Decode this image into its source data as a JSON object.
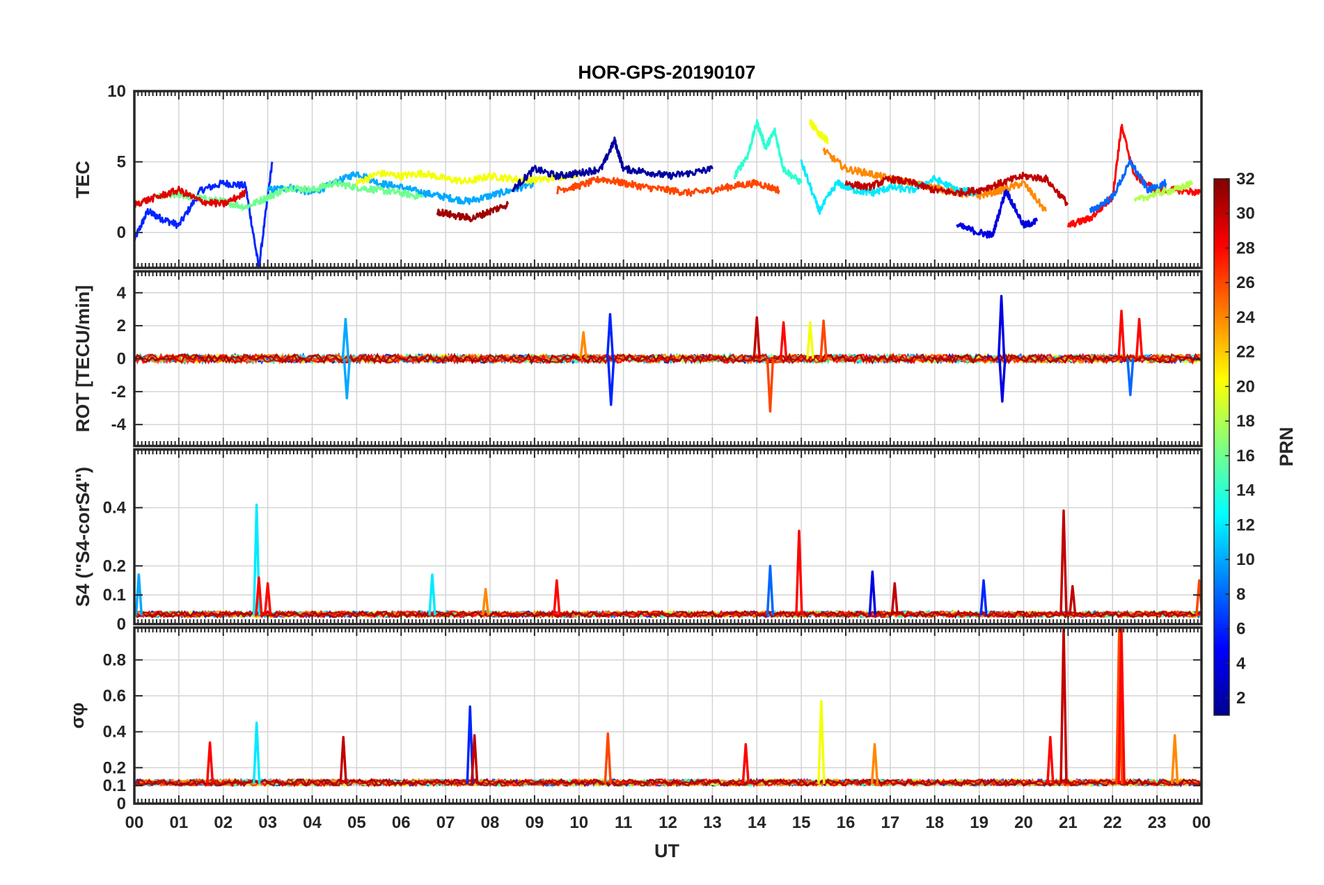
{
  "chart_data": {
    "type": "line",
    "title": "HOR-GPS-20190107",
    "xlabel": "UT",
    "x_tick_labels": [
      "00",
      "01",
      "02",
      "03",
      "04",
      "05",
      "06",
      "07",
      "08",
      "09",
      "10",
      "11",
      "12",
      "13",
      "14",
      "15",
      "16",
      "17",
      "18",
      "19",
      "20",
      "21",
      "22",
      "23",
      "00"
    ],
    "xlim": [
      0,
      24
    ],
    "grid": true,
    "colorbar": {
      "label": "PRN",
      "range": [
        1,
        32
      ],
      "ticks": [
        "2",
        "4",
        "6",
        "8",
        "10",
        "12",
        "14",
        "16",
        "18",
        "20",
        "22",
        "24",
        "26",
        "28",
        "30",
        "32"
      ],
      "colormap": "jet"
    },
    "panels": [
      {
        "id": "tec",
        "ylabel": "TEC",
        "ylim": [
          -2.5,
          10
        ],
        "y_ticks": [
          "0",
          "5",
          "10"
        ],
        "y_tick_values": [
          0,
          5,
          10
        ],
        "series": [
          {
            "prn": 6,
            "x": [
              0.0,
              0.3,
              0.6,
              1.0,
              1.5,
              2.0,
              2.5,
              2.8,
              3.1
            ],
            "y": [
              -0.5,
              1.5,
              1.0,
              0.5,
              3.0,
              3.5,
              3.3,
              -2.5,
              5.0
            ]
          },
          {
            "prn": 10,
            "x": [
              3.0,
              3.5,
              4.0,
              4.5,
              5.0,
              5.5,
              6.0,
              6.5,
              7.0,
              7.5,
              8.0,
              8.5,
              9.0
            ],
            "y": [
              3.0,
              3.2,
              2.8,
              3.5,
              4.2,
              3.5,
              3.2,
              2.8,
              2.5,
              2.2,
              2.6,
              3.0,
              3.5
            ]
          },
          {
            "prn": 16,
            "x": [
              0.5,
              1.0,
              1.5,
              2.0,
              2.5,
              3.0,
              3.5,
              4.0,
              4.5,
              5.0,
              5.5,
              6.0,
              6.5
            ],
            "y": [
              2.5,
              2.7,
              2.4,
              2.2,
              1.8,
              2.5,
              3.2,
              3.0,
              3.5,
              3.2,
              3.0,
              2.8,
              2.5
            ]
          },
          {
            "prn": 20,
            "x": [
              5.0,
              5.5,
              6.0,
              6.5,
              7.0,
              7.5,
              8.0,
              8.5,
              9.0,
              9.5,
              10.0
            ],
            "y": [
              3.5,
              4.2,
              4.0,
              4.2,
              3.8,
              3.6,
              4.0,
              3.8,
              3.7,
              3.9,
              4.2
            ]
          },
          {
            "prn": 26,
            "x": [
              9.5,
              10.0,
              10.5,
              11.0,
              11.5,
              12.0,
              12.5,
              13.0,
              13.5,
              14.0,
              14.5
            ],
            "y": [
              3.0,
              3.3,
              3.8,
              3.5,
              3.2,
              3.0,
              2.8,
              3.0,
              3.3,
              3.5,
              3.0
            ]
          },
          {
            "prn": 2,
            "x": [
              8.5,
              9.0,
              9.5,
              10.0,
              10.5,
              10.8,
              11.0,
              11.5,
              12.0,
              12.5,
              13.0
            ],
            "y": [
              3.0,
              4.5,
              4.0,
              4.2,
              4.5,
              6.5,
              4.5,
              4.3,
              4.0,
              4.2,
              4.5
            ]
          },
          {
            "prn": 14,
            "x": [
              13.5,
              13.8,
              14.0,
              14.2,
              14.4,
              14.6,
              15.0
            ],
            "y": [
              4.0,
              5.5,
              7.8,
              6.0,
              7.2,
              4.5,
              3.5
            ]
          },
          {
            "prn": 20,
            "x": [
              15.2,
              15.4,
              15.6
            ],
            "y": [
              7.8,
              7.0,
              6.5
            ]
          },
          {
            "prn": 24,
            "x": [
              15.5,
              16.0,
              16.5,
              17.0,
              17.5,
              18.0,
              18.5,
              19.0,
              19.5,
              20.0,
              20.5
            ],
            "y": [
              5.8,
              4.5,
              4.2,
              3.8,
              3.5,
              3.2,
              2.8,
              2.6,
              3.0,
              3.5,
              1.5
            ]
          },
          {
            "prn": 12,
            "x": [
              15.0,
              15.4,
              15.8,
              16.2,
              16.6,
              17.0,
              17.5,
              18.0,
              18.5,
              19.0
            ],
            "y": [
              5.0,
              1.5,
              3.5,
              3.0,
              2.8,
              3.2,
              3.0,
              3.8,
              3.0,
              2.8
            ]
          },
          {
            "prn": 30,
            "x": [
              16.0,
              16.5,
              17.0,
              17.5,
              18.0,
              18.5,
              19.0,
              19.5,
              20.0,
              20.5,
              21.0
            ],
            "y": [
              3.5,
              3.2,
              3.8,
              3.5,
              3.0,
              2.8,
              3.0,
              3.5,
              4.0,
              3.8,
              2.0
            ]
          },
          {
            "prn": 4,
            "x": [
              18.5,
              19.0,
              19.3,
              19.6,
              20.0,
              20.3
            ],
            "y": [
              0.5,
              0.0,
              -0.2,
              3.0,
              0.5,
              0.8
            ]
          },
          {
            "prn": 28,
            "x": [
              21.0,
              21.5,
              22.0,
              22.2,
              22.5,
              23.0,
              23.5,
              24.0
            ],
            "y": [
              0.5,
              1.0,
              2.5,
              7.5,
              4.0,
              3.0,
              3.0,
              2.8
            ]
          },
          {
            "prn": 8,
            "x": [
              21.5,
              22.0,
              22.4,
              22.8,
              23.2
            ],
            "y": [
              1.5,
              2.5,
              5.0,
              3.0,
              3.5
            ]
          },
          {
            "prn": 18,
            "x": [
              22.5,
              23.0,
              23.4,
              23.8
            ],
            "y": [
              2.2,
              2.8,
              3.0,
              3.5
            ]
          },
          {
            "prn": 29,
            "x": [
              0.0,
              0.5,
              1.0,
              1.5,
              2.0,
              2.5
            ],
            "y": [
              2.0,
              2.5,
              3.0,
              2.2,
              2.0,
              2.8
            ]
          },
          {
            "prn": 31,
            "x": [
              6.8,
              7.2,
              7.6,
              8.0,
              8.4
            ],
            "y": [
              1.5,
              1.2,
              1.0,
              1.5,
              2.0
            ]
          }
        ]
      },
      {
        "id": "rot",
        "ylabel": "ROT [TECU/min]",
        "ylim": [
          -5.3,
          5.3
        ],
        "y_ticks": [
          "-4",
          "-2",
          "0",
          "2",
          "4"
        ],
        "y_tick_values": [
          -4,
          -2,
          0,
          2,
          4
        ],
        "baseline": 0,
        "noise": 0.25,
        "spikes": [
          {
            "prn": 10,
            "x": 4.75,
            "y": 2.4
          },
          {
            "prn": 10,
            "x": 4.78,
            "y": -2.4
          },
          {
            "prn": 6,
            "x": 10.7,
            "y": 2.7
          },
          {
            "prn": 6,
            "x": 10.72,
            "y": -2.8
          },
          {
            "prn": 24,
            "x": 10.1,
            "y": 1.6
          },
          {
            "prn": 30,
            "x": 14.0,
            "y": 2.5
          },
          {
            "prn": 26,
            "x": 14.3,
            "y": -3.2
          },
          {
            "prn": 28,
            "x": 14.6,
            "y": 2.2
          },
          {
            "prn": 20,
            "x": 15.2,
            "y": 2.2
          },
          {
            "prn": 26,
            "x": 15.5,
            "y": 2.3
          },
          {
            "prn": 4,
            "x": 19.5,
            "y": 3.8
          },
          {
            "prn": 4,
            "x": 19.52,
            "y": -2.6
          },
          {
            "prn": 28,
            "x": 22.2,
            "y": 2.9
          },
          {
            "prn": 28,
            "x": 22.6,
            "y": 2.4
          },
          {
            "prn": 8,
            "x": 22.4,
            "y": -2.2
          }
        ]
      },
      {
        "id": "s4",
        "ylabel": "S4 (\"S4-corS4\")",
        "ylim": [
          0,
          0.6
        ],
        "y_ticks": [
          "0",
          "0.1",
          "0.2",
          "0.4"
        ],
        "y_tick_values": [
          0,
          0.1,
          0.2,
          0.4
        ],
        "baseline": 0.03,
        "noise": 0.02,
        "spikes": [
          {
            "prn": 10,
            "x": 0.1,
            "y": 0.17
          },
          {
            "prn": 12,
            "x": 2.75,
            "y": 0.41
          },
          {
            "prn": 28,
            "x": 2.8,
            "y": 0.16
          },
          {
            "prn": 28,
            "x": 3.0,
            "y": 0.14
          },
          {
            "prn": 12,
            "x": 6.7,
            "y": 0.17
          },
          {
            "prn": 24,
            "x": 7.9,
            "y": 0.12
          },
          {
            "prn": 28,
            "x": 9.5,
            "y": 0.15
          },
          {
            "prn": 8,
            "x": 14.3,
            "y": 0.2
          },
          {
            "prn": 28,
            "x": 14.95,
            "y": 0.32
          },
          {
            "prn": 4,
            "x": 16.6,
            "y": 0.18
          },
          {
            "prn": 30,
            "x": 17.1,
            "y": 0.14
          },
          {
            "prn": 6,
            "x": 19.1,
            "y": 0.15
          },
          {
            "prn": 30,
            "x": 20.9,
            "y": 0.39
          },
          {
            "prn": 30,
            "x": 21.1,
            "y": 0.13
          },
          {
            "prn": 26,
            "x": 23.95,
            "y": 0.15
          }
        ]
      },
      {
        "id": "sigma",
        "ylabel": "σφ",
        "ylim": [
          0,
          0.98
        ],
        "y_ticks": [
          "0",
          "0.1",
          "0.2",
          "0.4",
          "0.6",
          "0.8"
        ],
        "y_tick_values": [
          0,
          0.1,
          0.2,
          0.4,
          0.6,
          0.8
        ],
        "baseline": 0.11,
        "noise": 0.035,
        "spikes": [
          {
            "prn": 28,
            "x": 1.7,
            "y": 0.34
          },
          {
            "prn": 12,
            "x": 2.75,
            "y": 0.45
          },
          {
            "prn": 30,
            "x": 4.7,
            "y": 0.37
          },
          {
            "prn": 6,
            "x": 7.55,
            "y": 0.54
          },
          {
            "prn": 30,
            "x": 7.65,
            "y": 0.38
          },
          {
            "prn": 26,
            "x": 10.65,
            "y": 0.39
          },
          {
            "prn": 28,
            "x": 13.75,
            "y": 0.33
          },
          {
            "prn": 20,
            "x": 15.45,
            "y": 0.57
          },
          {
            "prn": 24,
            "x": 16.65,
            "y": 0.33
          },
          {
            "prn": 28,
            "x": 20.6,
            "y": 0.37
          },
          {
            "prn": 30,
            "x": 20.9,
            "y": 0.98
          },
          {
            "prn": 26,
            "x": 22.15,
            "y": 0.98
          },
          {
            "prn": 28,
            "x": 22.2,
            "y": 0.97
          },
          {
            "prn": 24,
            "x": 23.4,
            "y": 0.38
          }
        ]
      }
    ]
  }
}
